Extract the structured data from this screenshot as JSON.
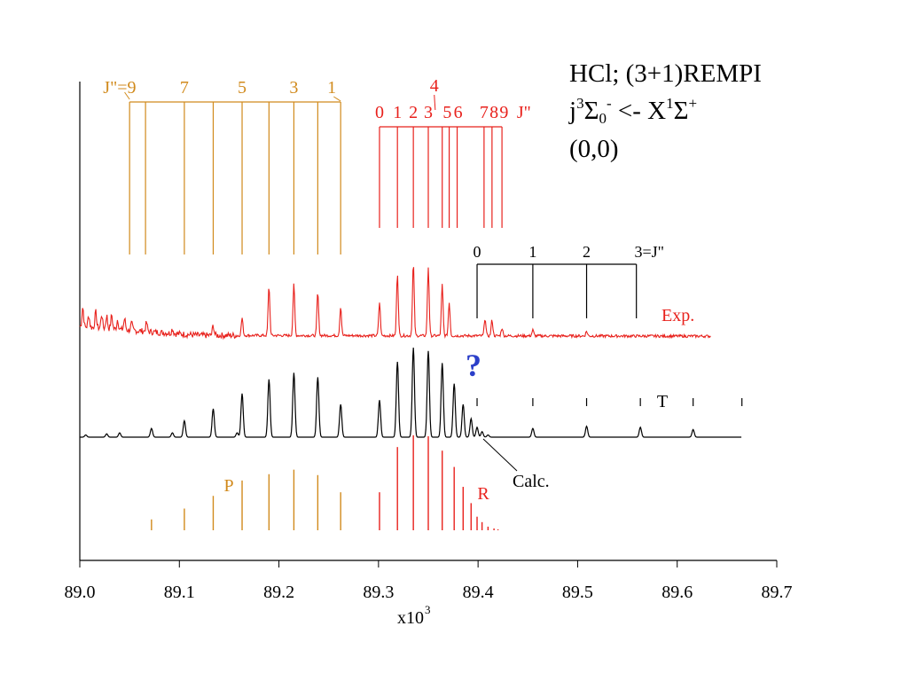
{
  "colors": {
    "p_branch": "#d18a1c",
    "r_branch": "#e8211c",
    "experimental": "#e8211c",
    "calculated": "#000000",
    "question_mark": "#2b3fc9",
    "axis": "#000000"
  },
  "title": {
    "line1": "HCl; (3+1)REMPI",
    "line2_j": "j",
    "line2_sup3": "3",
    "line2_sigma": "Σ",
    "line2_sub0": "0",
    "line2_supminus": "-",
    "line2_arrow": " <- X",
    "line2_sup1": "1",
    "line2_sigma2": "Σ",
    "line2_supplus": "+",
    "line3": "(0,0)"
  },
  "chart_data": {
    "type": "line",
    "x_axis": {
      "min": 89.0,
      "max": 89.7,
      "ticks": [
        89.0,
        89.1,
        89.2,
        89.3,
        89.4,
        89.5,
        89.6,
        89.7
      ],
      "tick_labels": [
        "89.0",
        "89.1",
        "89.2",
        "89.3",
        "89.4",
        "89.5",
        "89.6",
        "89.7"
      ],
      "label_base": "x10",
      "label_exp": "3"
    },
    "y_axis": {
      "ticks": [],
      "label": ""
    },
    "grid": false,
    "series": [
      {
        "name": "Exp.",
        "color": "#e8211c",
        "peaks": [
          {
            "x": 89.003,
            "h": 0.5
          },
          {
            "x": 89.009,
            "h": 0.3
          },
          {
            "x": 89.016,
            "h": 0.4
          },
          {
            "x": 89.022,
            "h": 0.35
          },
          {
            "x": 89.027,
            "h": 0.33
          },
          {
            "x": 89.032,
            "h": 0.35
          },
          {
            "x": 89.038,
            "h": 0.25
          },
          {
            "x": 89.045,
            "h": 0.28
          },
          {
            "x": 89.052,
            "h": 0.18
          },
          {
            "x": 89.067,
            "h": 0.22
          },
          {
            "x": 89.093,
            "h": 0.12
          },
          {
            "x": 89.134,
            "h": 0.25
          },
          {
            "x": 89.163,
            "h": 0.45
          },
          {
            "x": 89.19,
            "h": 1.25
          },
          {
            "x": 89.215,
            "h": 1.3
          },
          {
            "x": 89.239,
            "h": 1.1
          },
          {
            "x": 89.262,
            "h": 0.75
          },
          {
            "x": 89.301,
            "h": 0.85
          },
          {
            "x": 89.319,
            "h": 1.6
          },
          {
            "x": 89.335,
            "h": 1.85
          },
          {
            "x": 89.35,
            "h": 1.75
          },
          {
            "x": 89.364,
            "h": 1.3
          },
          {
            "x": 89.371,
            "h": 0.85
          },
          {
            "x": 89.407,
            "h": 0.45
          },
          {
            "x": 89.414,
            "h": 0.4
          },
          {
            "x": 89.424,
            "h": 0.2
          },
          {
            "x": 89.455,
            "h": 0.15
          },
          {
            "x": 89.509,
            "h": 0.12
          }
        ],
        "x_end": 89.634
      },
      {
        "name": "Calc.",
        "color": "#000000",
        "peaks": [
          {
            "x": 89.006,
            "h": 0.02
          },
          {
            "x": 89.027,
            "h": 0.03
          },
          {
            "x": 89.04,
            "h": 0.04
          },
          {
            "x": 89.072,
            "h": 0.08
          },
          {
            "x": 89.093,
            "h": 0.04
          },
          {
            "x": 89.105,
            "h": 0.15
          },
          {
            "x": 89.134,
            "h": 0.26
          },
          {
            "x": 89.158,
            "h": 0.04
          },
          {
            "x": 89.163,
            "h": 0.4
          },
          {
            "x": 89.19,
            "h": 0.53
          },
          {
            "x": 89.215,
            "h": 0.59
          },
          {
            "x": 89.239,
            "h": 0.55
          },
          {
            "x": 89.262,
            "h": 0.3
          },
          {
            "x": 89.301,
            "h": 0.34
          },
          {
            "x": 89.319,
            "h": 0.69
          },
          {
            "x": 89.335,
            "h": 0.82
          },
          {
            "x": 89.35,
            "h": 0.79
          },
          {
            "x": 89.364,
            "h": 0.68
          },
          {
            "x": 89.376,
            "h": 0.49
          },
          {
            "x": 89.385,
            "h": 0.3
          },
          {
            "x": 89.393,
            "h": 0.17
          },
          {
            "x": 89.399,
            "h": 0.09
          },
          {
            "x": 89.404,
            "h": 0.05
          },
          {
            "x": 89.41,
            "h": 0.02
          },
          {
            "x": 89.455,
            "h": 0.08
          },
          {
            "x": 89.509,
            "h": 0.1
          },
          {
            "x": 89.563,
            "h": 0.09
          },
          {
            "x": 89.616,
            "h": 0.07
          }
        ],
        "x_start": 89.0,
        "x_end": 89.665
      }
    ],
    "stick_spectra": {
      "P": {
        "label": "P",
        "color": "#d18a1c",
        "x": [
          89.072,
          89.105,
          89.134,
          89.163,
          89.19,
          89.215,
          89.239,
          89.262
        ],
        "h": [
          0.12,
          0.24,
          0.38,
          0.55,
          0.62,
          0.67,
          0.61,
          0.42
        ]
      },
      "R": {
        "label": "R",
        "color": "#e8211c",
        "x": [
          89.301,
          89.319,
          89.335,
          89.35,
          89.364,
          89.376,
          89.385,
          89.393,
          89.399,
          89.404,
          89.41,
          89.416,
          89.42
        ],
        "h": [
          0.42,
          0.92,
          1.05,
          1.04,
          0.88,
          0.7,
          0.48,
          0.3,
          0.15,
          0.09,
          0.04,
          0.02,
          0.01
        ]
      }
    },
    "assignments": {
      "P_comb": {
        "color": "#d18a1c",
        "x": [
          89.05,
          89.066,
          89.105,
          89.134,
          89.163,
          89.19,
          89.215,
          89.239,
          89.262
        ],
        "labels": [
          {
            "text": "J\"=9",
            "x": 89.04
          },
          {
            "text": "7",
            "x": 89.105
          },
          {
            "text": "5",
            "x": 89.163
          },
          {
            "text": "3",
            "x": 89.215
          },
          {
            "text": "1",
            "x": 89.253
          }
        ]
      },
      "R_comb": {
        "color": "#e8211c",
        "x": [
          89.301,
          89.319,
          89.335,
          89.35,
          89.364,
          89.371,
          89.379,
          89.406,
          89.414,
          89.424
        ],
        "labels": [
          {
            "text": "0",
            "x": 89.301
          },
          {
            "text": "1",
            "x": 89.319
          },
          {
            "text": "2",
            "x": 89.335
          },
          {
            "text": "3",
            "x": 89.35
          },
          {
            "text": "4",
            "x": 89.356
          },
          {
            "text": "5",
            "x": 89.369
          },
          {
            "text": "6",
            "x": 89.38
          },
          {
            "text": "7",
            "x": 89.406
          },
          {
            "text": "8",
            "x": 89.416
          },
          {
            "text": "9",
            "x": 89.426
          },
          {
            "text": "J\"",
            "x": 89.446
          }
        ]
      },
      "T_comb": {
        "color": "#000000",
        "x": [
          89.399,
          89.455,
          89.509,
          89.559
        ],
        "labels": [
          {
            "text": "0",
            "x": 89.399
          },
          {
            "text": "1",
            "x": 89.455
          },
          {
            "text": "2",
            "x": 89.509
          },
          {
            "text": "3=J\"",
            "x": 89.572
          }
        ]
      },
      "T_markers": {
        "label": "T",
        "x": [
          89.399,
          89.455,
          89.509,
          89.563,
          89.616,
          89.665
        ]
      }
    },
    "annotations": {
      "exp": "Exp.",
      "calc": "Calc.",
      "question": "?",
      "p_label": "P",
      "r_label": "R",
      "t_label": "T"
    }
  }
}
